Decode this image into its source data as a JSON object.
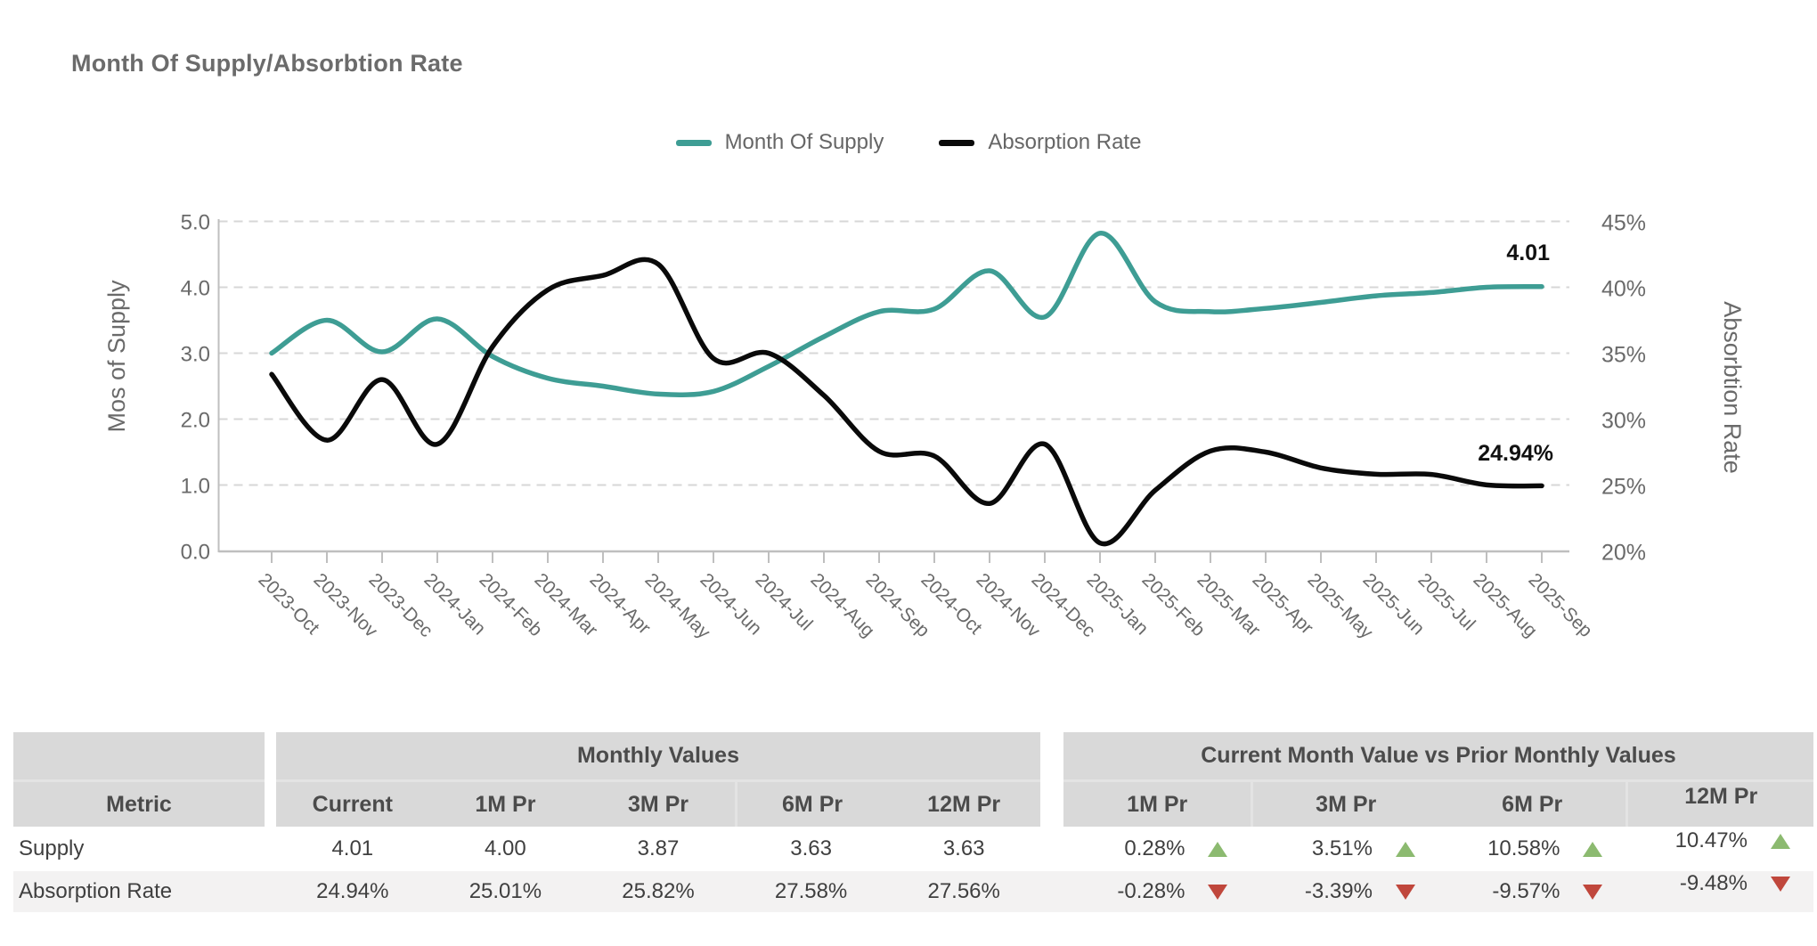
{
  "title": "Month Of Supply/Absorbtion Rate",
  "legend": [
    {
      "label": "Month Of Supply",
      "color": "#3e9d94"
    },
    {
      "label": "Absorption Rate",
      "color": "#0a0a0a"
    }
  ],
  "chart_data": {
    "type": "line",
    "categories": [
      "2023-Oct",
      "2023-Nov",
      "2023-Dec",
      "2024-Jan",
      "2024-Feb",
      "2024-Mar",
      "2024-Apr",
      "2024-May",
      "2024-Jun",
      "2024-Jul",
      "2024-Aug",
      "2024-Sep",
      "2024-Oct",
      "2024-Nov",
      "2024-Dec",
      "2025-Jan",
      "2025-Feb",
      "2025-Mar",
      "2025-Apr",
      "2025-May",
      "2025-Jun",
      "2025-Jul",
      "2025-Aug",
      "2025-Sep"
    ],
    "series": [
      {
        "name": "Month Of Supply",
        "axis": "left",
        "color": "#3e9d94",
        "values": [
          3.0,
          3.5,
          3.02,
          3.52,
          2.95,
          2.62,
          2.5,
          2.38,
          2.42,
          2.8,
          3.25,
          3.63,
          3.67,
          4.25,
          3.55,
          4.82,
          3.78,
          3.63,
          3.68,
          3.77,
          3.87,
          3.92,
          4.0,
          4.01
        ]
      },
      {
        "name": "Absorption Rate",
        "axis": "right",
        "color": "#0a0a0a",
        "values": [
          33.4,
          28.4,
          33.0,
          28.1,
          35.5,
          39.8,
          40.9,
          41.75,
          34.6,
          35.0,
          31.8,
          27.56,
          27.2,
          23.6,
          28.1,
          20.6,
          24.6,
          27.58,
          27.5,
          26.3,
          25.82,
          25.8,
          25.01,
          24.94
        ]
      }
    ],
    "left_axis": {
      "title": "Mos of Supply",
      "ticks": [
        "0.0",
        "1.0",
        "2.0",
        "3.0",
        "4.0",
        "5.0"
      ],
      "min": 0,
      "max": 5
    },
    "right_axis": {
      "title": "Absorbtion Rate",
      "ticks": [
        "20%",
        "25%",
        "30%",
        "35%",
        "40%",
        "45%"
      ],
      "min": 20,
      "max": 45
    },
    "end_labels": {
      "supply": "4.01",
      "absorption": "24.94%"
    },
    "grid": "horizontal dashed",
    "legend_position": "top-center"
  },
  "table": {
    "metric_header": "Metric",
    "group1": {
      "title": "Monthly Values",
      "columns": [
        "Current",
        "1M Pr",
        "3M Pr",
        "6M Pr",
        "12M Pr"
      ]
    },
    "group2": {
      "title": "Current Month Value vs Prior Monthly Values",
      "columns": [
        "1M Pr",
        "3M Pr",
        "6M Pr",
        "12M Pr"
      ]
    },
    "rows": [
      {
        "metric": "Supply",
        "monthly": [
          "4.01",
          "4.00",
          "3.87",
          "3.63",
          "3.63"
        ],
        "comparison": [
          {
            "value": "0.28%",
            "direction": "up"
          },
          {
            "value": "3.51%",
            "direction": "up"
          },
          {
            "value": "10.58%",
            "direction": "up"
          },
          {
            "value": "10.47%",
            "direction": "up"
          }
        ]
      },
      {
        "metric": "Absorption Rate",
        "monthly": [
          "24.94%",
          "25.01%",
          "25.82%",
          "27.58%",
          "27.56%"
        ],
        "comparison": [
          {
            "value": "-0.28%",
            "direction": "down"
          },
          {
            "value": "-3.39%",
            "direction": "down"
          },
          {
            "value": "-9.57%",
            "direction": "down"
          },
          {
            "value": "-9.48%",
            "direction": "down"
          }
        ]
      }
    ]
  },
  "colors": {
    "teal": "#3e9d94",
    "black": "#0a0a0a",
    "up_green": "#8cba70",
    "down_red": "#c0473c",
    "header_bg": "#d9d9d9",
    "stripe_bg": "#f3f2f2",
    "grid_line": "#d7d7d7",
    "axis_line": "#bfbfbf",
    "axis_text": "#6a6a6a",
    "title_text": "#6b6b6b"
  }
}
